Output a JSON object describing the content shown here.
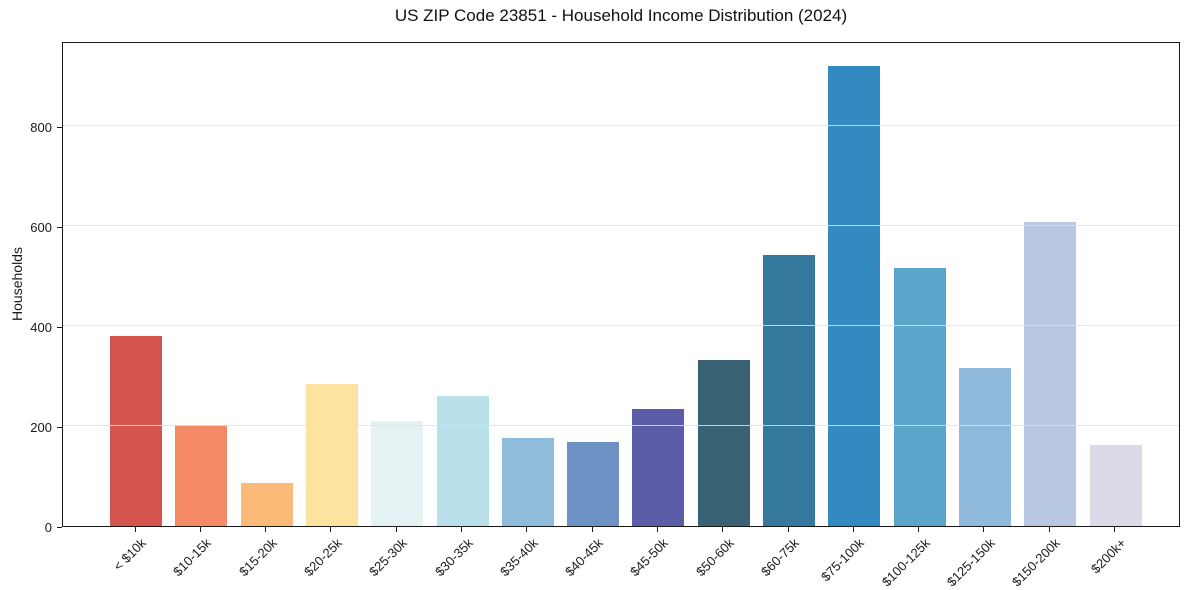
{
  "chart_data": {
    "type": "bar",
    "title": "US ZIP Code 23851 - Household Income Distribution (2024)",
    "xlabel": "",
    "ylabel": "Households",
    "categories": [
      "< $10k",
      "$10-15k",
      "$15-20k",
      "$20-25k",
      "$25-30k",
      "$30-35k",
      "$35-40k",
      "$40-45k",
      "$45-50k",
      "$50-60k",
      "$60-75k",
      "$75-100k",
      "$100-125k",
      "$125-150k",
      "$150-200k",
      "$200k+"
    ],
    "values": [
      380,
      203,
      87,
      285,
      211,
      261,
      177,
      168,
      234,
      333,
      543,
      920,
      516,
      317,
      609,
      163
    ],
    "bar_colors": [
      "#d6544e",
      "#f48a66",
      "#fbba77",
      "#fce3a0",
      "#e5f2f3",
      "#b9dfea",
      "#8ebcda",
      "#6c92c3",
      "#5b5da9",
      "#396275",
      "#36799f",
      "#338ac0",
      "#5aa5c9",
      "#8fb9da",
      "#b9c8e2",
      "#dbdae7"
    ],
    "ylim": [
      0,
      970
    ],
    "yticks": [
      0,
      200,
      400,
      600,
      800
    ],
    "grid": "horizontal",
    "legend": "none",
    "plot_background": "#ffffff",
    "spine_color": "#1a1a1a"
  }
}
